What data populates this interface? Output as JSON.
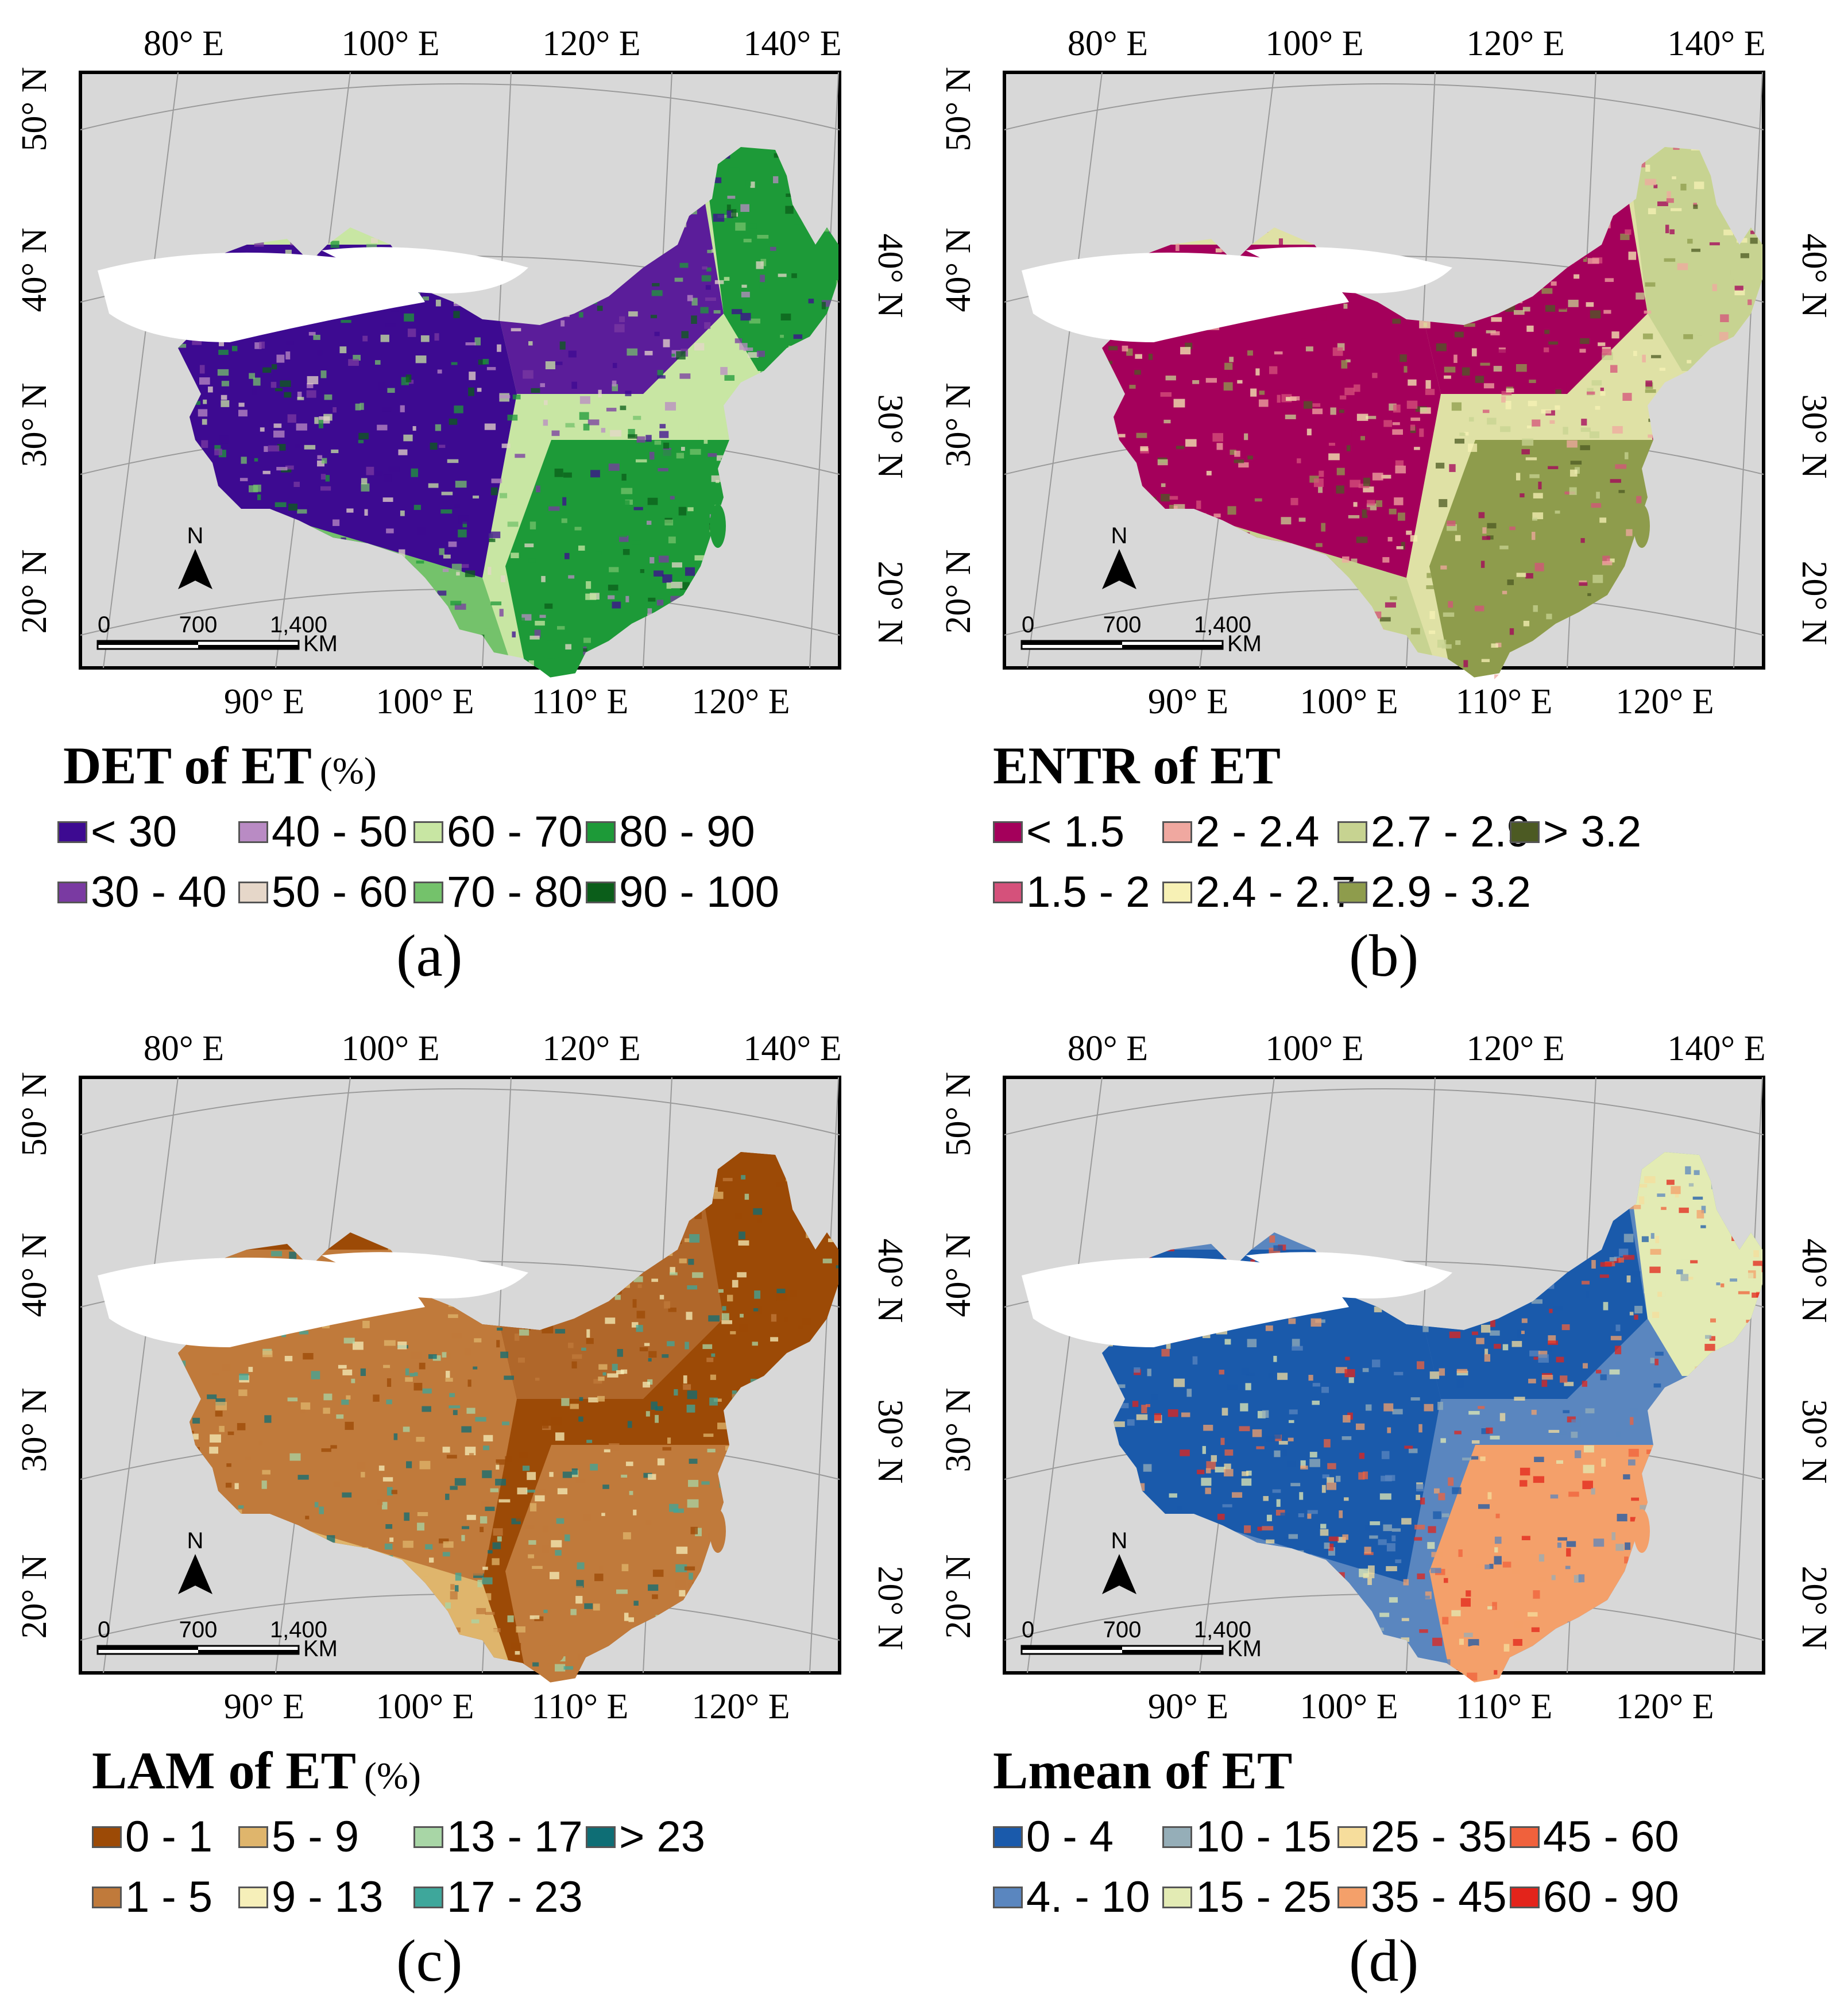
{
  "axes": {
    "top_lon": [
      "80° E",
      "100° E",
      "120° E",
      "140° E"
    ],
    "bottom_lon": [
      "90° E",
      "100° E",
      "110° E",
      "120° E"
    ],
    "left_lat": [
      "50° N",
      "40° N",
      "30° N",
      "20° N"
    ],
    "right_lat": [
      "40° N",
      "30° N",
      "20° N"
    ]
  },
  "scale_bar": {
    "ticks": [
      "0",
      "700",
      "1,400"
    ],
    "unit": "KM",
    "north": "N"
  },
  "panels": [
    {
      "id": "a",
      "label": "(a)",
      "title": "DET of ET",
      "unit": "(%)",
      "legend": [
        {
          "label": "< 30",
          "color": "#3d0a91"
        },
        {
          "label": "30 - 40",
          "color": "#7a3aa2"
        },
        {
          "label": "40 - 50",
          "color": "#b98bc4"
        },
        {
          "label": "50 - 60",
          "color": "#e6d7c9"
        },
        {
          "label": "60 - 70",
          "color": "#c8e6a3"
        },
        {
          "label": "70 - 80",
          "color": "#74c26b"
        },
        {
          "label": "80 - 90",
          "color": "#1d9a38"
        },
        {
          "label": "90 - 100",
          "color": "#0b5e1a"
        }
      ],
      "region_colors": {
        "west": "#3d0a91",
        "north": "#5b1d9a",
        "northeast": "#1d9a38",
        "southwest": "#74c26b",
        "south": "#1d9a38",
        "east": "#c8e6a3"
      }
    },
    {
      "id": "b",
      "label": "(b)",
      "title": "ENTR of ET",
      "unit": "",
      "legend": [
        {
          "label": "< 1.5",
          "color": "#a4005b"
        },
        {
          "label": "1.5 - 2",
          "color": "#d5517b"
        },
        {
          "label": "2 - 2.4",
          "color": "#f0a8a0"
        },
        {
          "label": "2.4 - 2.7",
          "color": "#f7f1b5"
        },
        {
          "label": "2.7 - 2.9",
          "color": "#c7d391"
        },
        {
          "label": "2.9 - 3.2",
          "color": "#8e9c4c"
        },
        {
          "label": "> 3.2",
          "color": "#4c5a23"
        }
      ],
      "region_colors": {
        "west": "#a4005b",
        "north": "#a4005b",
        "northeast": "#c7d391",
        "southwest": "#c7d391",
        "south": "#8e9c4c",
        "east": "#dfe1a5"
      }
    },
    {
      "id": "c",
      "label": "(c)",
      "title": "LAM of ET",
      "unit": "(%)",
      "legend": [
        {
          "label": "0 - 1",
          "color": "#9c4a06"
        },
        {
          "label": "1 - 5",
          "color": "#c07a3b"
        },
        {
          "label": "5 - 9",
          "color": "#dfb56c"
        },
        {
          "label": "9 - 13",
          "color": "#f6efb9"
        },
        {
          "label": "13 - 17",
          "color": "#a8d6a6"
        },
        {
          "label": "17 - 23",
          "color": "#3ea79b"
        },
        {
          "label": "> 23",
          "color": "#0e6e75"
        }
      ],
      "region_colors": {
        "west": "#c07a3b",
        "north": "#b0672a",
        "northeast": "#9c4a06",
        "southwest": "#dfb56c",
        "south": "#c07a3b",
        "east": "#9c4a06"
      }
    },
    {
      "id": "d",
      "label": "(d)",
      "title": "Lmean of ET",
      "unit": "",
      "legend": [
        {
          "label": "0 - 4",
          "color": "#1a5aab"
        },
        {
          "label": "4. - 10",
          "color": "#5a86bf"
        },
        {
          "label": "10 - 15",
          "color": "#95aeb8"
        },
        {
          "label": "15 - 25",
          "color": "#e3ebb4"
        },
        {
          "label": "25 - 35",
          "color": "#f6dd9c"
        },
        {
          "label": "35 - 45",
          "color": "#f4a06a"
        },
        {
          "label": "45 - 60",
          "color": "#f0613c"
        },
        {
          "label": "60 - 90",
          "color": "#e3241b"
        }
      ],
      "region_colors": {
        "west": "#1a5aab",
        "north": "#1a5aab",
        "northeast": "#e3ebb4",
        "southwest": "#5a86bf",
        "south": "#f4a06a",
        "east": "#5a86bf"
      }
    }
  ]
}
